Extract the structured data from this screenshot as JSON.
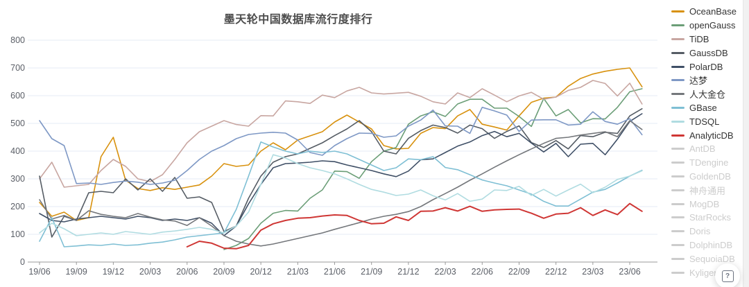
{
  "chart_data": {
    "type": "line",
    "title": "墨天轮中国数据库流行度排行",
    "xlabel": "",
    "ylabel": "",
    "ylim": [
      0,
      800
    ],
    "yticks": [
      0,
      100,
      200,
      300,
      400,
      500,
      600,
      700,
      800
    ],
    "grid": "horizontal-light",
    "legend_position": "right",
    "x": [
      "19/06",
      "19/07",
      "19/08",
      "19/09",
      "19/10",
      "19/11",
      "19/12",
      "20/01",
      "20/02",
      "20/03",
      "20/04",
      "20/05",
      "20/06",
      "20/07",
      "20/08",
      "20/09",
      "20/10",
      "20/11",
      "20/12",
      "21/01",
      "21/02",
      "21/03",
      "21/04",
      "21/05",
      "21/06",
      "21/07",
      "21/08",
      "21/09",
      "21/10",
      "21/11",
      "21/12",
      "22/01",
      "22/02",
      "22/03",
      "22/04",
      "22/05",
      "22/06",
      "22/07",
      "22/08",
      "22/09",
      "22/10",
      "22/11",
      "22/12",
      "23/01",
      "23/02",
      "23/03",
      "23/04",
      "23/05",
      "23/06",
      "23/07"
    ],
    "x_tick_labels": [
      "19/06",
      "19/09",
      "19/12",
      "20/03",
      "20/06",
      "20/09",
      "20/12",
      "21/03",
      "21/06",
      "21/09",
      "21/12",
      "22/03",
      "22/06",
      "22/09",
      "22/12",
      "23/03",
      "23/06"
    ],
    "series": [
      {
        "name": "OceanBase",
        "color": "#d8910d",
        "values": [
          215,
          165,
          180,
          150,
          160,
          380,
          450,
          295,
          265,
          258,
          268,
          262,
          270,
          278,
          310,
          355,
          345,
          350,
          400,
          430,
          405,
          440,
          455,
          470,
          505,
          530,
          505,
          480,
          420,
          408,
          410,
          464,
          485,
          481,
          527,
          550,
          497,
          487,
          476,
          527,
          576,
          591,
          595,
          634,
          662,
          678,
          688,
          695,
          700,
          632
        ]
      },
      {
        "name": "openGauss",
        "color": "#6b9e77",
        "values": [
          null,
          null,
          null,
          null,
          null,
          null,
          null,
          null,
          null,
          null,
          null,
          null,
          null,
          null,
          null,
          45,
          60,
          85,
          140,
          176,
          186,
          184,
          230,
          260,
          328,
          326,
          302,
          362,
          400,
          413,
          497,
          527,
          542,
          525,
          570,
          587,
          587,
          555,
          555,
          525,
          489,
          590,
          527,
          550,
          502,
          517,
          516,
          558,
          614,
          625
        ]
      },
      {
        "name": "TiDB",
        "color": "#c8a6a1",
        "values": [
          300,
          360,
          270,
          275,
          280,
          330,
          370,
          345,
          300,
          290,
          315,
          370,
          430,
          470,
          490,
          510,
          496,
          490,
          528,
          527,
          581,
          578,
          572,
          602,
          593,
          617,
          630,
          610,
          606,
          609,
          612,
          598,
          578,
          570,
          610,
          593,
          625,
          602,
          578,
          599,
          612,
          587,
          595,
          619,
          630,
          655,
          644,
          599,
          645,
          570
        ]
      },
      {
        "name": "GaussDB",
        "color": "#555c64",
        "values": [
          310,
          90,
          165,
          150,
          250,
          255,
          250,
          300,
          260,
          300,
          255,
          305,
          230,
          235,
          215,
          110,
          130,
          230,
          310,
          360,
          380,
          390,
          410,
          430,
          456,
          480,
          510,
          470,
          400,
          390,
          446,
          474,
          494,
          485,
          465,
          494,
          481,
          446,
          471,
          491,
          431,
          413,
          438,
          408,
          456,
          452,
          468,
          464,
          527,
          553
        ]
      },
      {
        "name": "PolarDB",
        "color": "#3f4f66",
        "values": [
          175,
          150,
          145,
          155,
          160,
          165,
          160,
          155,
          165,
          160,
          150,
          155,
          150,
          160,
          140,
          95,
          130,
          210,
          280,
          340,
          355,
          357,
          360,
          365,
          362,
          350,
          340,
          330,
          318,
          308,
          328,
          369,
          372,
          395,
          418,
          433,
          456,
          471,
          452,
          464,
          429,
          397,
          428,
          380,
          425,
          428,
          387,
          443,
          507,
          535
        ]
      },
      {
        "name": "达梦",
        "color": "#7e98c5",
        "values": [
          510,
          445,
          420,
          283,
          285,
          280,
          287,
          292,
          288,
          280,
          285,
          295,
          330,
          370,
          400,
          420,
          445,
          460,
          465,
          468,
          465,
          440,
          395,
          385,
          420,
          445,
          465,
          464,
          450,
          455,
          490,
          512,
          548,
          491,
          490,
          464,
          558,
          545,
          530,
          471,
          512,
          513,
          513,
          494,
          497,
          542,
          507,
          497,
          517,
          459
        ]
      },
      {
        "name": "人大金仓",
        "color": "#74777b",
        "values": [
          225,
          155,
          168,
          150,
          185,
          172,
          165,
          160,
          175,
          162,
          152,
          148,
          132,
          160,
          130,
          95,
          75,
          65,
          58,
          65,
          75,
          85,
          95,
          105,
          118,
          130,
          142,
          155,
          165,
          172,
          182,
          200,
          225,
          247,
          270,
          295,
          318,
          342,
          365,
          387,
          408,
          428,
          446,
          450,
          458,
          464,
          470,
          452,
          510,
          478
        ]
      },
      {
        "name": "GBase",
        "color": "#7ebfd4",
        "values": [
          75,
          160,
          55,
          58,
          62,
          60,
          65,
          60,
          62,
          68,
          72,
          80,
          90,
          95,
          100,
          105,
          190,
          310,
          433,
          415,
          400,
          390,
          400,
          395,
          400,
          390,
          370,
          350,
          330,
          340,
          372,
          369,
          380,
          341,
          333,
          315,
          296,
          285,
          275,
          260,
          245,
          219,
          202,
          202,
          227,
          252,
          262,
          285,
          310,
          331
        ]
      },
      {
        "name": "TDSQL",
        "color": "#b0dce1",
        "values": [
          105,
          140,
          120,
          95,
          100,
          105,
          100,
          110,
          105,
          100,
          108,
          112,
          118,
          125,
          118,
          105,
          130,
          180,
          280,
          387,
          375,
          355,
          340,
          330,
          318,
          300,
          280,
          262,
          252,
          240,
          245,
          260,
          239,
          224,
          247,
          219,
          227,
          260,
          258,
          273,
          240,
          262,
          238,
          260,
          281,
          250,
          270,
          298,
          310,
          329
        ]
      },
      {
        "name": "AnalyticDB",
        "color": "#cf3634",
        "values": [
          null,
          null,
          null,
          null,
          null,
          null,
          null,
          null,
          null,
          null,
          null,
          null,
          55,
          75,
          68,
          50,
          48,
          60,
          115,
          138,
          150,
          158,
          160,
          166,
          170,
          168,
          150,
          138,
          140,
          163,
          150,
          183,
          184,
          196,
          184,
          201,
          183,
          188,
          190,
          191,
          176,
          158,
          173,
          176,
          196,
          168,
          188,
          171,
          211,
          183
        ]
      }
    ],
    "disabled_series": [
      "AntDB",
      "TDengine",
      "GoldenDB",
      "神舟通用",
      "MogDB",
      "StarRocks",
      "Doris",
      "DolphinDB",
      "SequoiaDB",
      "Kyligence"
    ],
    "disabled_color": "#cccccc",
    "axis_line_color": "#999999",
    "grid_line_color": "#e4ebf4",
    "tick_label_color": "#5a5e66"
  },
  "help_button": {
    "icon": "question-mark-key",
    "glyph": "?"
  }
}
